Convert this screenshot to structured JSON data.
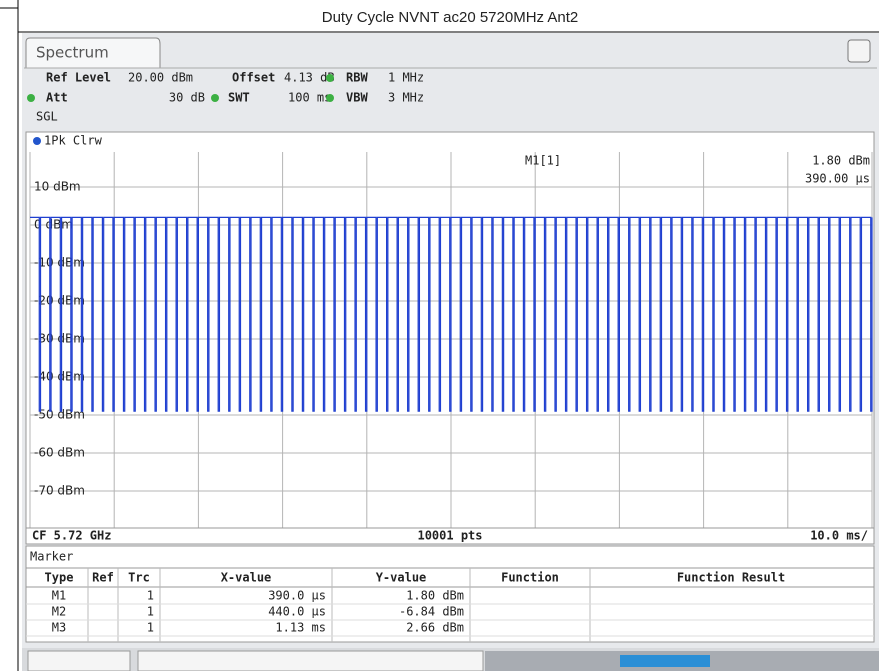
{
  "title": "Duty Cycle NVNT ac20 5720MHz Ant2",
  "tab": "Spectrum",
  "settings": [
    {
      "label": "Ref Level",
      "value": "20.00 dBm"
    },
    {
      "label": "Offset",
      "value": "4.13 dB"
    },
    {
      "label": "RBW",
      "value": "1 MHz"
    },
    {
      "label": "Att",
      "value": "30 dB"
    },
    {
      "label": "SWT",
      "value": "100 ms"
    },
    {
      "label": "VBW",
      "value": "3 MHz"
    }
  ],
  "mode": "SGL",
  "trace_label": "1Pk Clrw",
  "chart_data": {
    "type": "line",
    "color": "#1f3fd0",
    "xlim": [
      0,
      100
    ],
    "xticks": [
      0,
      10,
      20,
      30,
      40,
      50,
      60,
      70,
      80,
      90,
      100
    ],
    "ylim": [
      -80,
      20
    ],
    "yticks": [
      {
        "value": 10,
        "label": "10 dBm"
      },
      {
        "value": 0,
        "label": "0 dBm"
      },
      {
        "value": -10,
        "label": "-10 dBm"
      },
      {
        "value": -20,
        "label": "-20 dBm"
      },
      {
        "value": -30,
        "label": "-30 dBm"
      },
      {
        "value": -40,
        "label": "-40 dBm"
      },
      {
        "value": -50,
        "label": "-50 dBm"
      },
      {
        "value": -60,
        "label": "-60 dBm"
      },
      {
        "value": -70,
        "label": "-70 dBm"
      }
    ],
    "trace": {
      "on_dbm": 2,
      "off_dbm": -49,
      "period_ms": 1.25,
      "off_ms": 0.15
    },
    "grid": true
  },
  "marker_readout": {
    "name": "M1[1]",
    "value": "1.80 dBm",
    "time": "390.00 µs"
  },
  "status": {
    "center": "CF 5.72 GHz",
    "points": "10001 pts",
    "span": "10.0 ms/"
  },
  "marker_table": {
    "title": "Marker",
    "columns": [
      "Type",
      "Ref",
      "Trc",
      "X-value",
      "Y-value",
      "Function",
      "Function Result"
    ],
    "rows": [
      [
        "M1",
        "1",
        "390.0 µs",
        "1.80 dBm"
      ],
      [
        "M2",
        "1",
        "440.0 µs",
        "-6.84 dBm"
      ],
      [
        "M3",
        "1",
        "1.13 ms",
        "2.66 dBm"
      ]
    ]
  }
}
